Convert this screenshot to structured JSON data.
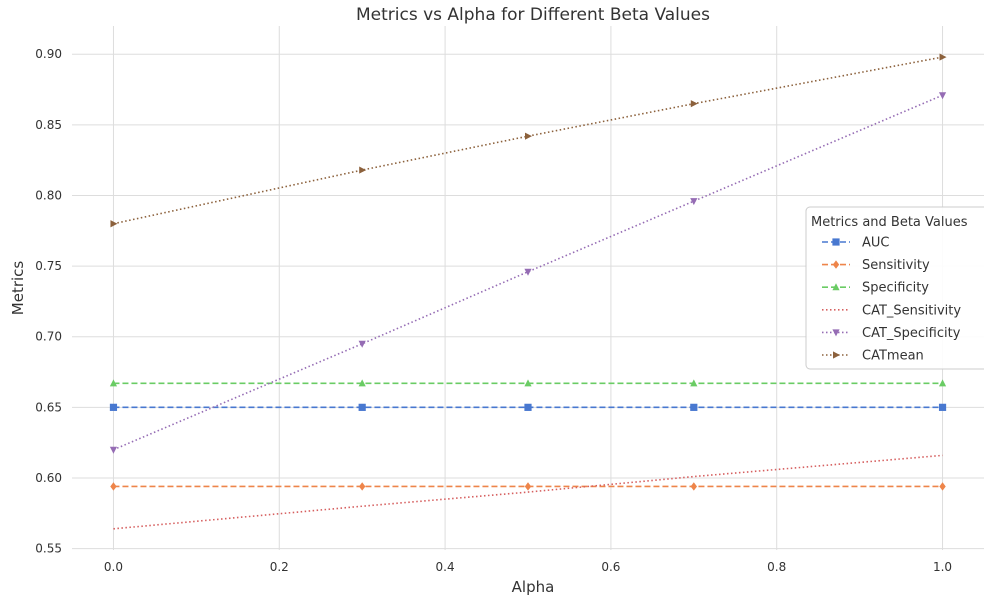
{
  "chart_data": {
    "type": "line",
    "title": "Metrics vs Alpha for Different Beta Values",
    "xlabel": "Alpha",
    "ylabel": "Metrics",
    "xlim": [
      -0.05,
      1.05
    ],
    "ylim": [
      0.549,
      0.92
    ],
    "x_ticks": [
      0.0,
      0.2,
      0.4,
      0.6,
      0.8,
      1.0
    ],
    "x_tick_labels": [
      "0.0",
      "0.2",
      "0.4",
      "0.6",
      "0.8",
      "1.0"
    ],
    "y_ticks": [
      0.55,
      0.6,
      0.65,
      0.7,
      0.75,
      0.8,
      0.85,
      0.9
    ],
    "y_tick_labels": [
      "0.55",
      "0.60",
      "0.65",
      "0.70",
      "0.75",
      "0.80",
      "0.85",
      "0.90"
    ],
    "grid": true,
    "legend_title": "Metrics and Beta Values",
    "legend_position": "center-right",
    "x": [
      0.0,
      0.3,
      0.5,
      0.7,
      1.0
    ],
    "series": [
      {
        "name": "AUC",
        "values": [
          0.65,
          0.65,
          0.65,
          0.65,
          0.65
        ],
        "color": "#4878d0",
        "dash": "dashed",
        "marker": "square"
      },
      {
        "name": "Sensitivity",
        "values": [
          0.594,
          0.594,
          0.594,
          0.594,
          0.594
        ],
        "color": "#ee854a",
        "dash": "dashed",
        "marker": "diamond"
      },
      {
        "name": "Specificity",
        "values": [
          0.667,
          0.667,
          0.667,
          0.667,
          0.667
        ],
        "color": "#6acc64",
        "dash": "dashed",
        "marker": "triangle-up"
      },
      {
        "name": "CAT_Sensitivity",
        "values": [
          0.564,
          0.58,
          0.59,
          0.601,
          0.616
        ],
        "color": "#d65f5f",
        "dash": "dotted",
        "marker": "none"
      },
      {
        "name": "CAT_Specificity",
        "values": [
          0.62,
          0.695,
          0.746,
          0.796,
          0.871
        ],
        "color": "#956cb4",
        "dash": "dotted",
        "marker": "triangle-down"
      },
      {
        "name": "CATmean",
        "values": [
          0.78,
          0.818,
          0.842,
          0.865,
          0.898
        ],
        "color": "#8c613c",
        "dash": "dotted",
        "marker": "triangle-right"
      }
    ]
  }
}
